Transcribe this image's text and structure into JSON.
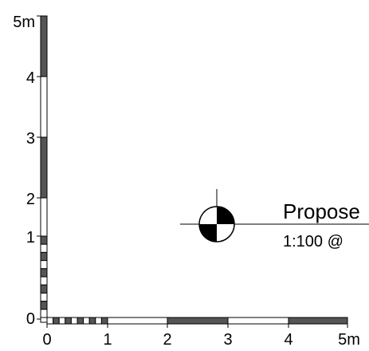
{
  "scale_bar": {
    "unit_label_x": "5m",
    "unit_label_y": "5m",
    "x_ticks": [
      "0",
      "1",
      "2",
      "3",
      "4"
    ],
    "y_ticks": [
      "0",
      "1",
      "2",
      "3",
      "4"
    ],
    "fill_color": "#555555",
    "stroke_color": "#000000"
  },
  "title_block": {
    "title": "Propose",
    "scale_text": "1:100 @"
  }
}
